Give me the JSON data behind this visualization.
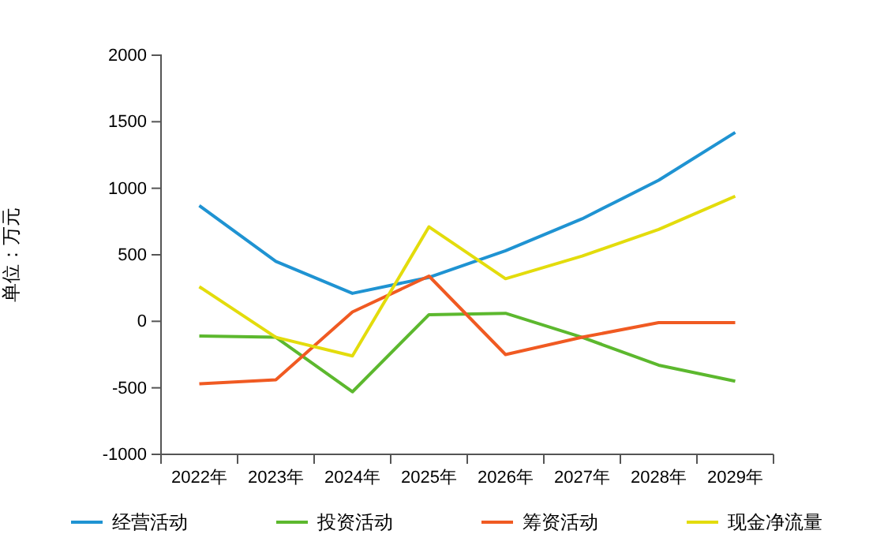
{
  "chart_data": {
    "type": "line",
    "ylabel": "单位：万元",
    "categories": [
      "2022年",
      "2023年",
      "2024年",
      "2025年",
      "2026年",
      "2027年",
      "2028年",
      "2029年"
    ],
    "ylim": [
      -1000,
      2000
    ],
    "yticks": [
      -1000,
      -500,
      0,
      500,
      1000,
      1500,
      2000
    ],
    "grid": false,
    "legend": "bottom",
    "marker": "none",
    "series": [
      {
        "name": "经营活动",
        "color": "#1f93d2",
        "values": [
          870,
          450,
          210,
          330,
          530,
          770,
          1060,
          1420
        ]
      },
      {
        "name": "投资活动",
        "color": "#5cb82e",
        "values": [
          -110,
          -120,
          -530,
          50,
          60,
          -120,
          -330,
          -450
        ]
      },
      {
        "name": "筹资活动",
        "color": "#f05a22",
        "values": [
          -470,
          -440,
          70,
          340,
          -250,
          -120,
          -10,
          -10
        ]
      },
      {
        "name": "现金净流量",
        "color": "#e3dc0c",
        "values": [
          260,
          -120,
          -260,
          710,
          320,
          490,
          690,
          940
        ]
      }
    ]
  }
}
